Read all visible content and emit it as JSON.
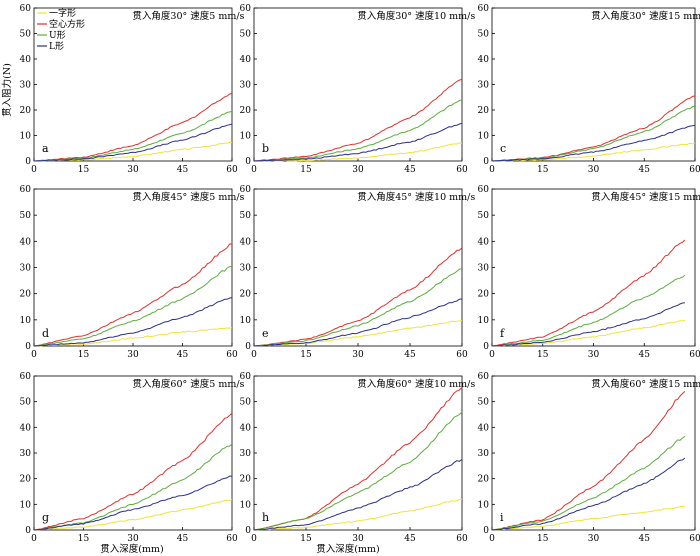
{
  "figure": {
    "ylabel": "贯入阻力(N)",
    "xlabel": "贯入深度(mm)"
  },
  "legend": {
    "items": [
      {
        "name": "一字形",
        "color": "#f2e23a"
      },
      {
        "name": "空心方形",
        "color": "#e0302a"
      },
      {
        "name": "U形",
        "color": "#5aae3c"
      },
      {
        "name": "L形",
        "color": "#2a2f8c"
      }
    ]
  },
  "chart_data": [
    {
      "type": "line",
      "letter": "a",
      "title": "贯入角度30°  速度5 mm/s",
      "xlim": [
        0,
        60
      ],
      "ylim": [
        0,
        60
      ],
      "xticks": [
        0,
        15,
        30,
        45,
        60
      ],
      "yticks": [
        0,
        10,
        20,
        30,
        40,
        50,
        60
      ],
      "show_yticks": true,
      "series": [
        {
          "name": "一字形",
          "points": [
            [
              0,
              0
            ],
            [
              15,
              0.4
            ],
            [
              30,
              1.8
            ],
            [
              45,
              4.5
            ],
            [
              60,
              7.2
            ]
          ]
        },
        {
          "name": "空心方形",
          "points": [
            [
              0,
              0
            ],
            [
              15,
              1.5
            ],
            [
              30,
              6
            ],
            [
              45,
              15
            ],
            [
              60,
              26.5
            ]
          ]
        },
        {
          "name": "U形",
          "points": [
            [
              0,
              0
            ],
            [
              15,
              1.1
            ],
            [
              30,
              4.5
            ],
            [
              45,
              10.8
            ],
            [
              60,
              19.5
            ]
          ]
        },
        {
          "name": "L形",
          "points": [
            [
              0,
              0
            ],
            [
              15,
              0.8
            ],
            [
              30,
              3.3
            ],
            [
              45,
              8.2
            ],
            [
              60,
              14.5
            ]
          ]
        }
      ]
    },
    {
      "type": "line",
      "letter": "b",
      "title": "贯入角度30°  速度10 mm/s",
      "xlim": [
        0,
        60
      ],
      "ylim": [
        0,
        60
      ],
      "xticks": [
        0,
        15,
        30,
        45,
        60
      ],
      "yticks": [
        0,
        10,
        20,
        30,
        40,
        50,
        60
      ],
      "show_yticks": true,
      "series": [
        {
          "name": "一字形",
          "points": [
            [
              0,
              0
            ],
            [
              15,
              0.2
            ],
            [
              30,
              1.2
            ],
            [
              45,
              3.3
            ],
            [
              60,
              7
            ]
          ]
        },
        {
          "name": "空心方形",
          "points": [
            [
              0,
              0
            ],
            [
              15,
              1.8
            ],
            [
              30,
              7
            ],
            [
              45,
              17
            ],
            [
              60,
              32
            ]
          ]
        },
        {
          "name": "U形",
          "points": [
            [
              0,
              0
            ],
            [
              15,
              1.2
            ],
            [
              30,
              4.8
            ],
            [
              45,
              12
            ],
            [
              60,
              24
            ]
          ]
        },
        {
          "name": "L形",
          "points": [
            [
              0,
              0
            ],
            [
              15,
              0.7
            ],
            [
              30,
              3
            ],
            [
              45,
              7.5
            ],
            [
              60,
              14.8
            ]
          ]
        }
      ]
    },
    {
      "type": "line",
      "letter": "c",
      "title": "贯入角度30°  速度15 mm/s",
      "xlim": [
        0,
        60
      ],
      "ylim": [
        0,
        60
      ],
      "xticks": [
        0,
        15,
        30,
        45,
        60
      ],
      "yticks": [
        0,
        10,
        20,
        30,
        40,
        50,
        60
      ],
      "show_yticks": true,
      "series": [
        {
          "name": "一字形",
          "points": [
            [
              0,
              0
            ],
            [
              15,
              0.4
            ],
            [
              30,
              2
            ],
            [
              45,
              4.5
            ],
            [
              60,
              7
            ]
          ]
        },
        {
          "name": "空心方形",
          "points": [
            [
              0,
              0
            ],
            [
              15,
              1.3
            ],
            [
              30,
              5.5
            ],
            [
              45,
              13
            ],
            [
              60,
              25.5
            ]
          ]
        },
        {
          "name": "U形",
          "points": [
            [
              0,
              0
            ],
            [
              15,
              1.1
            ],
            [
              30,
              4.8
            ],
            [
              45,
              11.5
            ],
            [
              60,
              21.5
            ]
          ]
        },
        {
          "name": "L形",
          "points": [
            [
              0,
              0
            ],
            [
              15,
              0.8
            ],
            [
              30,
              3.5
            ],
            [
              45,
              8
            ],
            [
              60,
              14
            ]
          ]
        }
      ]
    },
    {
      "type": "line",
      "letter": "d",
      "title": "贯入角度45°  速度5 mm/s",
      "xlim": [
        0,
        60
      ],
      "ylim": [
        0,
        60
      ],
      "xticks": [
        0,
        15,
        30,
        45,
        60
      ],
      "yticks": [
        0,
        10,
        20,
        30,
        40,
        50,
        60
      ],
      "show_yticks": true,
      "series": [
        {
          "name": "一字形",
          "points": [
            [
              0,
              0
            ],
            [
              15,
              0.8
            ],
            [
              30,
              3
            ],
            [
              45,
              5.3
            ],
            [
              60,
              7
            ]
          ]
        },
        {
          "name": "空心方形",
          "points": [
            [
              0,
              0
            ],
            [
              15,
              4
            ],
            [
              30,
              12.5
            ],
            [
              45,
              23.5
            ],
            [
              60,
              39
            ]
          ]
        },
        {
          "name": "U形",
          "points": [
            [
              0,
              0
            ],
            [
              15,
              2.8
            ],
            [
              30,
              9.5
            ],
            [
              45,
              18
            ],
            [
              60,
              30.5
            ]
          ]
        },
        {
          "name": "L形",
          "points": [
            [
              0,
              0
            ],
            [
              15,
              1.2
            ],
            [
              30,
              5
            ],
            [
              45,
              11
            ],
            [
              60,
              18.5
            ]
          ]
        }
      ]
    },
    {
      "type": "line",
      "letter": "e",
      "title": "贯入角度45°  速度10 mm/s",
      "xlim": [
        0,
        60
      ],
      "ylim": [
        0,
        60
      ],
      "xticks": [
        0,
        15,
        30,
        45,
        60
      ],
      "yticks": [
        0,
        10,
        20,
        30,
        40,
        50,
        60
      ],
      "show_yticks": true,
      "series": [
        {
          "name": "一字形",
          "points": [
            [
              0,
              0
            ],
            [
              15,
              1
            ],
            [
              30,
              3.5
            ],
            [
              45,
              6.8
            ],
            [
              60,
              9.8
            ]
          ]
        },
        {
          "name": "空心方形",
          "points": [
            [
              0,
              0
            ],
            [
              15,
              2.5
            ],
            [
              30,
              9.5
            ],
            [
              45,
              21.5
            ],
            [
              60,
              37.5
            ]
          ]
        },
        {
          "name": "U形",
          "points": [
            [
              0,
              0
            ],
            [
              15,
              2
            ],
            [
              30,
              7.8
            ],
            [
              45,
              17
            ],
            [
              60,
              29.5
            ]
          ]
        },
        {
          "name": "L形",
          "points": [
            [
              0,
              0
            ],
            [
              15,
              1.2
            ],
            [
              30,
              5
            ],
            [
              45,
              11
            ],
            [
              60,
              18
            ]
          ]
        }
      ]
    },
    {
      "type": "line",
      "letter": "f",
      "title": "贯入角度45°  速度15 mm/s",
      "xlim": [
        0,
        60
      ],
      "ylim": [
        0,
        60
      ],
      "xticks": [
        0,
        15,
        30,
        45,
        60
      ],
      "yticks": [
        0,
        10,
        20,
        30,
        40,
        50,
        60
      ],
      "show_yticks": true,
      "series": [
        {
          "name": "一字形",
          "points": [
            [
              0,
              0
            ],
            [
              15,
              1
            ],
            [
              30,
              3.5
            ],
            [
              45,
              7
            ],
            [
              57,
              9.8
            ]
          ]
        },
        {
          "name": "空心方形",
          "points": [
            [
              0,
              0
            ],
            [
              15,
              3.5
            ],
            [
              30,
              13
            ],
            [
              45,
              27
            ],
            [
              57,
              40.5
            ]
          ]
        },
        {
          "name": "U形",
          "points": [
            [
              0,
              0
            ],
            [
              15,
              2.2
            ],
            [
              30,
              9
            ],
            [
              45,
              18.5
            ],
            [
              57,
              27
            ]
          ]
        },
        {
          "name": "L形",
          "points": [
            [
              0,
              0
            ],
            [
              15,
              1.4
            ],
            [
              30,
              5.5
            ],
            [
              45,
              10.5
            ],
            [
              57,
              16.5
            ]
          ]
        }
      ]
    },
    {
      "type": "line",
      "letter": "g",
      "title": "贯入角度60°  速度5 mm/s",
      "xlim": [
        0,
        60
      ],
      "ylim": [
        0,
        60
      ],
      "xticks": [
        0,
        15,
        30,
        45,
        60
      ],
      "yticks": [
        0,
        10,
        20,
        30,
        40,
        50,
        60
      ],
      "show_yticks": true,
      "series": [
        {
          "name": "一字形",
          "points": [
            [
              0,
              0
            ],
            [
              15,
              1.2
            ],
            [
              30,
              4
            ],
            [
              45,
              7.8
            ],
            [
              60,
              11.8
            ]
          ]
        },
        {
          "name": "空心方形",
          "points": [
            [
              0,
              0
            ],
            [
              15,
              4.5
            ],
            [
              30,
              14
            ],
            [
              45,
              27
            ],
            [
              60,
              45.5
            ]
          ]
        },
        {
          "name": "U形",
          "points": [
            [
              0,
              0
            ],
            [
              15,
              2.8
            ],
            [
              30,
              10
            ],
            [
              45,
              19.5
            ],
            [
              60,
              33.5
            ]
          ]
        },
        {
          "name": "L形",
          "points": [
            [
              0,
              0
            ],
            [
              15,
              2.5
            ],
            [
              30,
              8
            ],
            [
              45,
              13.5
            ],
            [
              60,
              21
            ]
          ]
        }
      ]
    },
    {
      "type": "line",
      "letter": "h",
      "title": "贯入角度60°  速度10 mm/s",
      "xlim": [
        0,
        60
      ],
      "ylim": [
        0,
        60
      ],
      "xticks": [
        0,
        15,
        30,
        45,
        60
      ],
      "yticks": [
        0,
        10,
        20,
        30,
        40,
        50,
        60
      ],
      "show_yticks": true,
      "series": [
        {
          "name": "一字形",
          "points": [
            [
              0,
              0
            ],
            [
              15,
              1
            ],
            [
              30,
              3.5
            ],
            [
              45,
              7.5
            ],
            [
              60,
              12
            ]
          ]
        },
        {
          "name": "空心方形",
          "points": [
            [
              0,
              0
            ],
            [
              15,
              4.5
            ],
            [
              30,
              18
            ],
            [
              45,
              34
            ],
            [
              60,
              55.5
            ]
          ]
        },
        {
          "name": "U形",
          "points": [
            [
              0,
              0
            ],
            [
              15,
              4.5
            ],
            [
              30,
              14.5
            ],
            [
              45,
              26.5
            ],
            [
              60,
              46
            ]
          ]
        },
        {
          "name": "L形",
          "points": [
            [
              0,
              0
            ],
            [
              15,
              2
            ],
            [
              30,
              8.5
            ],
            [
              45,
              16.5
            ],
            [
              60,
              27.5
            ]
          ]
        }
      ]
    },
    {
      "type": "line",
      "letter": "i",
      "title": "贯入角度60°  速度15 mm/s",
      "xlim": [
        0,
        60
      ],
      "ylim": [
        0,
        60
      ],
      "xticks": [
        0,
        15,
        30,
        45,
        60
      ],
      "yticks": [
        0,
        10,
        20,
        30,
        40,
        50,
        60
      ],
      "show_yticks": true,
      "series": [
        {
          "name": "一字形",
          "points": [
            [
              0,
              0
            ],
            [
              15,
              1.5
            ],
            [
              30,
              4.5
            ],
            [
              45,
              7
            ],
            [
              57,
              9.2
            ]
          ]
        },
        {
          "name": "空心方形",
          "points": [
            [
              0,
              0
            ],
            [
              15,
              4
            ],
            [
              30,
              17
            ],
            [
              45,
              35
            ],
            [
              57,
              54
            ]
          ]
        },
        {
          "name": "U形",
          "points": [
            [
              0,
              0
            ],
            [
              15,
              3.5
            ],
            [
              30,
              12.5
            ],
            [
              45,
              24
            ],
            [
              57,
              36.5
            ]
          ]
        },
        {
          "name": "L形",
          "points": [
            [
              0,
              0
            ],
            [
              15,
              2.5
            ],
            [
              30,
              9.5
            ],
            [
              45,
              18
            ],
            [
              57,
              28
            ]
          ]
        }
      ]
    }
  ]
}
